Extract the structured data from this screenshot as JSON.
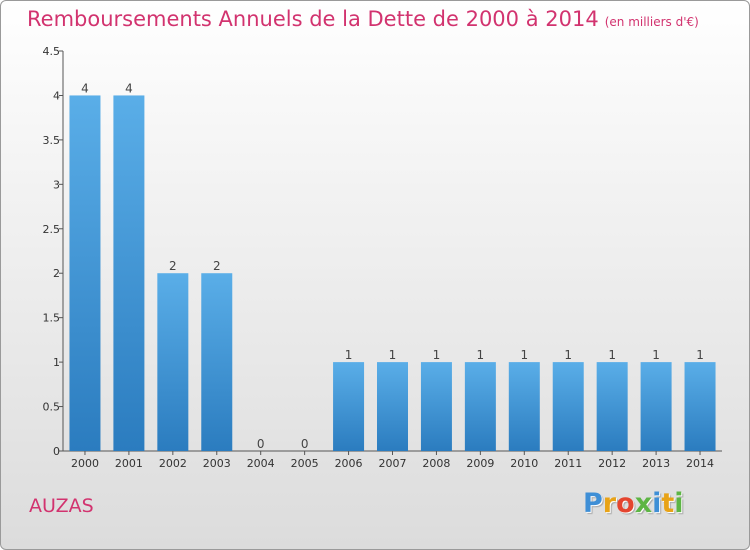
{
  "header": {
    "title": "Remboursements Annuels de la Dette de 2000 à 2014",
    "unit": "(en milliers d'€)"
  },
  "footer": {
    "place": "AUZAS",
    "logo": [
      "P",
      "r",
      "o",
      "x",
      "i",
      "t",
      "i"
    ],
    "logo_colors": [
      "#3f8fd6",
      "#e8a317",
      "#e4452f",
      "#5db544",
      "#3f8fd6",
      "#e8a317",
      "#5db544"
    ]
  },
  "colors": {
    "title": "#d2336f",
    "bar_top": "#5aaee8",
    "bar_bottom": "#2b7cbf",
    "axis": "#555555"
  },
  "chart_data": {
    "type": "bar",
    "categories": [
      "2000",
      "2001",
      "2002",
      "2003",
      "2004",
      "2005",
      "2006",
      "2007",
      "2008",
      "2009",
      "2010",
      "2011",
      "2012",
      "2013",
      "2014"
    ],
    "values": [
      4,
      4,
      2,
      2,
      0,
      0,
      1,
      1,
      1,
      1,
      1,
      1,
      1,
      1,
      1
    ],
    "data_labels": [
      "4",
      "4",
      "2",
      "2",
      "0",
      "0",
      "1",
      "1",
      "1",
      "1",
      "1",
      "1",
      "1",
      "1",
      "1"
    ],
    "ylim": [
      0,
      4.5
    ],
    "yticks": [
      0,
      0.5,
      1,
      1.5,
      2,
      2.5,
      3,
      3.5,
      4,
      4.5
    ],
    "ytick_labels": [
      "0",
      "0.5",
      "1",
      "1.5",
      "2",
      "2.5",
      "3",
      "3.5",
      "4",
      "4.5"
    ],
    "grid": false,
    "legend": "none"
  }
}
